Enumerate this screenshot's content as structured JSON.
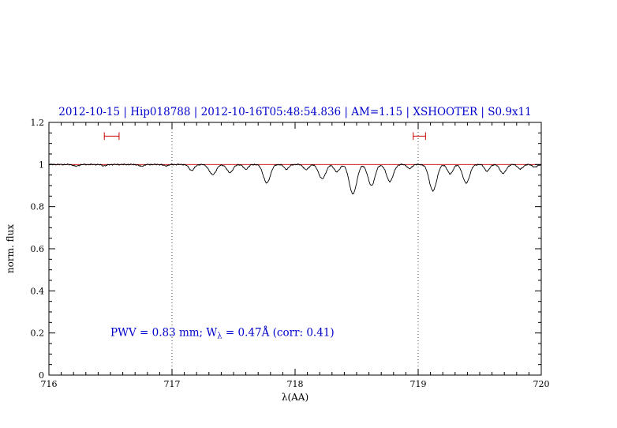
{
  "chart_data": {
    "type": "line",
    "title": "2012-10-15 | Hip018788 | 2012-10-16T05:48:54.836 | AM=1.15 | XSHOOTER | S0.9x11",
    "title_color": "#0000cc",
    "xlabel": "λ(AA)",
    "ylabel": "norm. flux",
    "xlim": [
      716,
      720
    ],
    "ylim": [
      0,
      1.2
    ],
    "xticks": [
      716,
      717,
      718,
      719,
      720
    ],
    "xtick_labels": [
      "716",
      "717",
      "718",
      "719",
      "720"
    ],
    "yticks": [
      0,
      0.2,
      0.4,
      0.6,
      0.8,
      1,
      1.2
    ],
    "ytick_labels": [
      "0",
      "0.2",
      "0.4",
      "0.6",
      "0.8",
      "1",
      "1.2"
    ],
    "x_minor_step": 0.1,
    "y_minor_step": 0.05,
    "dotted_vlines": [
      717,
      719
    ],
    "continuum": {
      "level": 1.0,
      "color": "#cc0000"
    },
    "spectrum_color": "#000000",
    "sample_step": 0.005,
    "noise_amplitude": 0.004,
    "absorption_lines": [
      [
        716.22,
        0.008,
        0.02
      ],
      [
        716.45,
        0.006,
        0.02
      ],
      [
        716.75,
        0.008,
        0.02
      ],
      [
        716.95,
        0.006,
        0.02
      ],
      [
        717.16,
        0.028,
        0.022
      ],
      [
        717.33,
        0.048,
        0.028
      ],
      [
        717.47,
        0.038,
        0.025
      ],
      [
        717.6,
        0.022,
        0.02
      ],
      [
        717.77,
        0.088,
        0.028
      ],
      [
        717.93,
        0.022,
        0.02
      ],
      [
        718.09,
        0.025,
        0.02
      ],
      [
        718.22,
        0.068,
        0.028
      ],
      [
        718.34,
        0.035,
        0.022
      ],
      [
        718.47,
        0.14,
        0.03
      ],
      [
        718.62,
        0.1,
        0.028
      ],
      [
        718.77,
        0.08,
        0.028
      ],
      [
        718.93,
        0.02,
        0.018
      ],
      [
        719.12,
        0.125,
        0.03
      ],
      [
        719.26,
        0.045,
        0.022
      ],
      [
        719.39,
        0.088,
        0.028
      ],
      [
        719.56,
        0.032,
        0.02
      ],
      [
        719.69,
        0.042,
        0.025
      ],
      [
        719.83,
        0.022,
        0.02
      ],
      [
        719.95,
        0.012,
        0.02
      ]
    ],
    "range_markers": {
      "color": "#cc0000",
      "y": 1.135,
      "cap_halfheight": 0.018,
      "intervals": [
        [
          716.45,
          716.57
        ],
        [
          718.96,
          719.06
        ]
      ]
    },
    "annotation": {
      "color": "#0000cc",
      "x": 716.5,
      "y": 0.185,
      "prefix": "PWV = 0.83 mm; W",
      "subscript": "λ",
      "suffix": " = 0.47Å (corr: 0.41)"
    }
  }
}
